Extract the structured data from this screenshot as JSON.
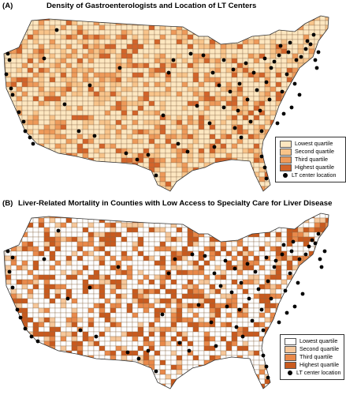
{
  "panel_a": {
    "tag": "(A)",
    "title": "Density of Gastroenterologists and Location of LT Centers",
    "legend": {
      "items": [
        {
          "label": "Lowest quartile",
          "color": "#fde7c0"
        },
        {
          "label": "Second quartile",
          "color": "#f8c48a"
        },
        {
          "label": "Third quartile",
          "color": "#ee9a5a"
        },
        {
          "label": "Highest quartile",
          "color": "#d3642a"
        }
      ],
      "marker_label": "LT center location"
    }
  },
  "panel_b": {
    "tag": "(B)",
    "title": "Liver-Related Mortality in Counties with Low Access to Specialty Care for Liver Disease",
    "legend": {
      "items": [
        {
          "label": "Lowest quartile",
          "color": "#ffffff"
        },
        {
          "label": "Second quartile",
          "color": "#f6c79a"
        },
        {
          "label": "Third quartile",
          "color": "#e9894a"
        },
        {
          "label": "Highest quartile",
          "color": "#c85a1e"
        }
      ],
      "marker_label": "LT center location"
    }
  },
  "colors": {
    "county_border": "#8a6a4a",
    "lt_center": "#000000"
  }
}
